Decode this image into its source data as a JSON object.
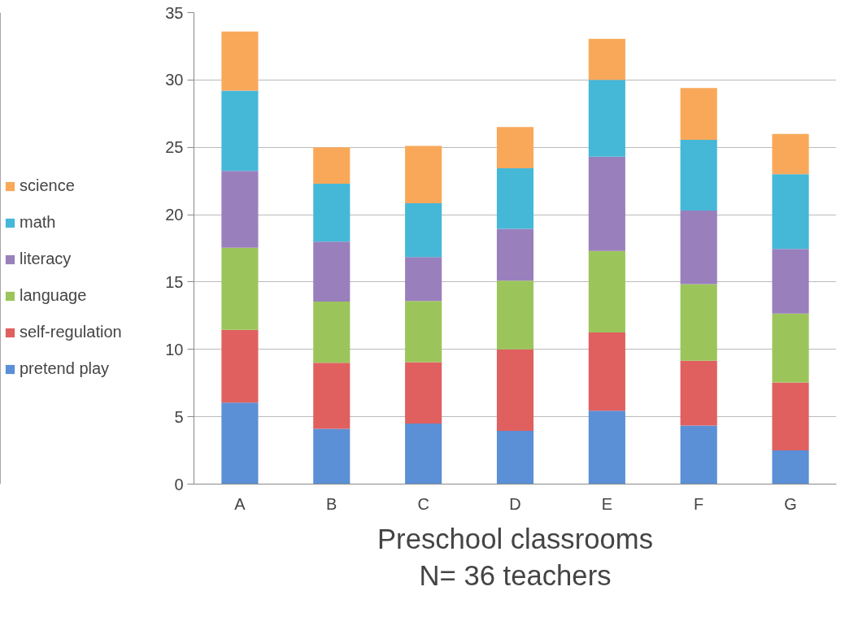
{
  "chart_data": {
    "type": "bar",
    "stacked": true,
    "xlabel": "Preschool classrooms\nN= 36 teachers",
    "categories": [
      "A",
      "B",
      "C",
      "D",
      "E",
      "F",
      "G"
    ],
    "series": [
      {
        "name": "pretend play",
        "color": "#5b8fd6",
        "values": [
          6.05,
          4.1,
          4.5,
          3.95,
          5.45,
          4.35,
          2.5
        ]
      },
      {
        "name": "self-regulation",
        "color": "#e06060",
        "values": [
          5.4,
          4.9,
          4.55,
          6.05,
          5.8,
          4.8,
          5.05
        ]
      },
      {
        "name": "language",
        "color": "#9bc55a",
        "values": [
          6.1,
          4.55,
          4.55,
          5.1,
          6.05,
          5.7,
          5.1
        ]
      },
      {
        "name": "literacy",
        "color": "#9a7fbd",
        "values": [
          5.7,
          4.45,
          3.25,
          3.85,
          7.0,
          5.45,
          4.8
        ]
      },
      {
        "name": "math",
        "color": "#45b8d8",
        "values": [
          5.95,
          4.3,
          4.0,
          4.5,
          5.7,
          5.25,
          5.55
        ]
      },
      {
        "name": "science",
        "color": "#f9a85a",
        "values": [
          4.4,
          2.7,
          4.25,
          3.05,
          3.05,
          3.85,
          3.0
        ]
      }
    ],
    "ylim": [
      0,
      35
    ],
    "yticks": [
      0,
      5,
      10,
      15,
      20,
      25,
      30,
      35
    ],
    "grid": "y",
    "legend": "left"
  }
}
